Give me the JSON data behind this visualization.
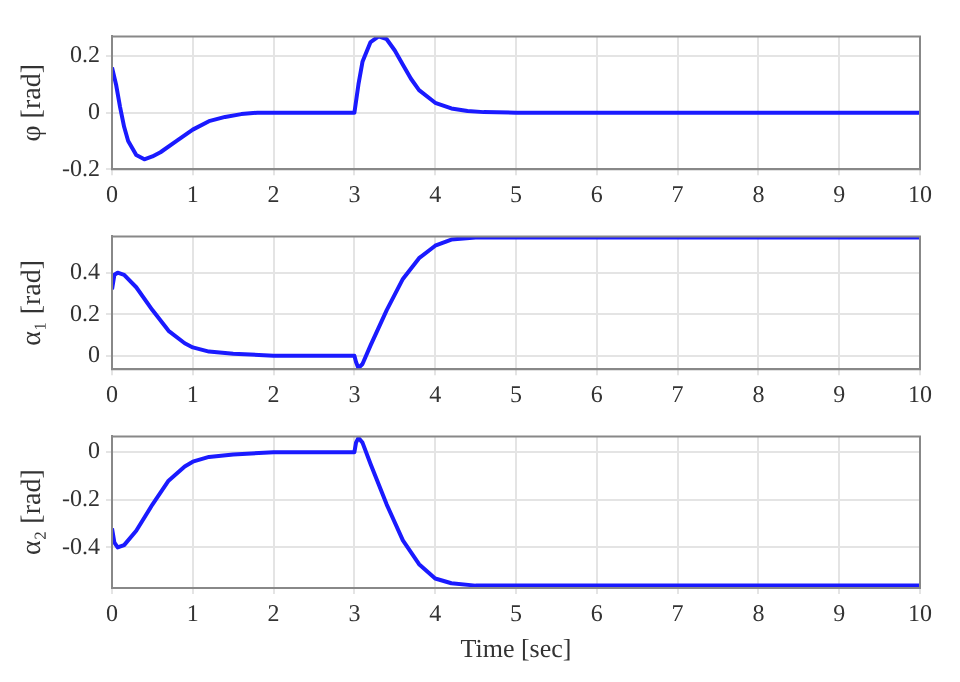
{
  "chart_data": [
    {
      "type": "line",
      "ylabel": "φ [rad]",
      "x": [
        0,
        0.05,
        0.1,
        0.15,
        0.2,
        0.3,
        0.4,
        0.5,
        0.6,
        0.8,
        1.0,
        1.2,
        1.4,
        1.6,
        1.8,
        2.0,
        3.0,
        3.05,
        3.1,
        3.2,
        3.3,
        3.4,
        3.5,
        3.6,
        3.7,
        3.8,
        4.0,
        4.2,
        4.4,
        4.6,
        5,
        10
      ],
      "series": [
        {
          "color": "#1a1aff",
          "values": [
            0.16,
            0.1,
            0.02,
            -0.05,
            -0.1,
            -0.15,
            -0.165,
            -0.155,
            -0.14,
            -0.1,
            -0.06,
            -0.03,
            -0.015,
            -0.005,
            0,
            0,
            0,
            0.1,
            0.18,
            0.25,
            0.27,
            0.26,
            0.22,
            0.17,
            0.12,
            0.08,
            0.035,
            0.015,
            0.006,
            0.002,
            0,
            0
          ]
        }
      ],
      "xlim": [
        0,
        10
      ],
      "xticks": [
        0,
        1,
        2,
        3,
        4,
        5,
        6,
        7,
        8,
        9,
        10
      ],
      "ylim": [
        -0.2,
        0.27
      ],
      "yticks": [
        -0.2,
        0,
        0.2
      ],
      "grid": true,
      "legend": false,
      "marker": "none",
      "line_style": "solid"
    },
    {
      "type": "line",
      "ylabel": "α₁ [rad]",
      "x": [
        0,
        0.03,
        0.07,
        0.15,
        0.3,
        0.5,
        0.7,
        0.9,
        1.0,
        1.2,
        1.5,
        2,
        3,
        3.02,
        3.05,
        3.1,
        3.2,
        3.4,
        3.6,
        3.8,
        4.0,
        4.2,
        4.5,
        5,
        10
      ],
      "series": [
        {
          "color": "#1a1aff",
          "values": [
            0.32,
            0.39,
            0.4,
            0.39,
            0.33,
            0.22,
            0.12,
            0.06,
            0.04,
            0.02,
            0.01,
            0,
            0,
            -0.03,
            -0.06,
            -0.04,
            0.05,
            0.22,
            0.37,
            0.47,
            0.53,
            0.56,
            0.57,
            0.57,
            0.57
          ]
        }
      ],
      "xlim": [
        0,
        10
      ],
      "xticks": [
        0,
        1,
        2,
        3,
        4,
        5,
        6,
        7,
        8,
        9,
        10
      ],
      "ylim": [
        -0.065,
        0.575
      ],
      "yticks": [
        0,
        0.2,
        0.4
      ],
      "grid": true,
      "legend": false,
      "marker": "none",
      "line_style": "solid"
    },
    {
      "type": "line",
      "xlabel": "Time [sec]",
      "ylabel": "α₂ [rad]",
      "x": [
        0,
        0.03,
        0.07,
        0.15,
        0.3,
        0.5,
        0.7,
        0.9,
        1.0,
        1.2,
        1.5,
        2,
        3,
        3.02,
        3.05,
        3.1,
        3.2,
        3.4,
        3.6,
        3.8,
        4.0,
        4.2,
        4.5,
        5,
        10
      ],
      "series": [
        {
          "color": "#1a1aff",
          "values": [
            -0.32,
            -0.38,
            -0.4,
            -0.39,
            -0.33,
            -0.22,
            -0.12,
            -0.06,
            -0.04,
            -0.02,
            -0.01,
            0,
            0,
            0.04,
            0.06,
            0.04,
            -0.05,
            -0.22,
            -0.37,
            -0.47,
            -0.53,
            -0.55,
            -0.56,
            -0.56,
            -0.56
          ]
        }
      ],
      "xlim": [
        0,
        10
      ],
      "xticks": [
        0,
        1,
        2,
        3,
        4,
        5,
        6,
        7,
        8,
        9,
        10
      ],
      "ylim": [
        -0.57,
        0.066
      ],
      "yticks": [
        -0.4,
        -0.2,
        0
      ],
      "grid": true,
      "legend": false,
      "marker": "none",
      "line_style": "solid"
    }
  ]
}
